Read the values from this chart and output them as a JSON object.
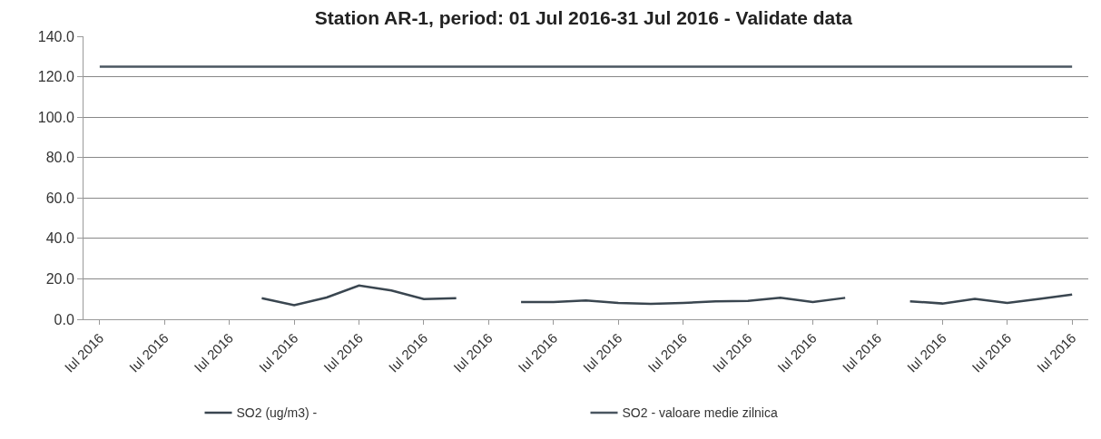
{
  "chart_data": {
    "type": "line",
    "title": "Station AR-1, period: 01 Jul 2016-31 Jul 2016 - Validate data",
    "categories": [
      "Iul 2016",
      null,
      "Iul 2016",
      null,
      "Iul 2016",
      null,
      "Iul 2016",
      null,
      "Iul 2016",
      null,
      "Iul 2016",
      null,
      "Iul 2016",
      null,
      "Iul 2016",
      null,
      "Iul 2016",
      null,
      "Iul 2016",
      null,
      "Iul 2016",
      null,
      "Iul 2016",
      null,
      "Iul 2016",
      null,
      "Iul 2016",
      null,
      "Iul 2016",
      null,
      "Iul 2016"
    ],
    "series": [
      {
        "name": "SO2 (ug/m3) -",
        "color": "#3a4650",
        "values": [
          null,
          null,
          null,
          null,
          null,
          10.4,
          7.0,
          10.8,
          16.7,
          14.2,
          10.0,
          10.4,
          null,
          8.5,
          8.5,
          9.3,
          8.1,
          7.6,
          8.1,
          8.9,
          9.1,
          10.6,
          8.5,
          10.6,
          null,
          8.9,
          7.8,
          10.1,
          8.1,
          10.1,
          12.2
        ]
      },
      {
        "name": "SO2 - valoare medie zilnica",
        "color": "#4a5660",
        "values": [
          125,
          125,
          125,
          125,
          125,
          125,
          125,
          125,
          125,
          125,
          125,
          125,
          125,
          125,
          125,
          125,
          125,
          125,
          125,
          125,
          125,
          125,
          125,
          125,
          125,
          125,
          125,
          125,
          125,
          125,
          125
        ]
      }
    ],
    "ylim": [
      0,
      140
    ],
    "yticks": [
      {
        "value": 0,
        "label": "0.0"
      },
      {
        "value": 20,
        "label": "20.0"
      },
      {
        "value": 40,
        "label": "40.0"
      },
      {
        "value": 60,
        "label": "60.0"
      },
      {
        "value": 80,
        "label": "80.0"
      },
      {
        "value": 100,
        "label": "100.0"
      },
      {
        "value": 120,
        "label": "120.0"
      },
      {
        "value": 140,
        "label": "140.0"
      }
    ],
    "grid": "y",
    "legend": "bottom",
    "marker": "none",
    "line_style": "solid"
  }
}
